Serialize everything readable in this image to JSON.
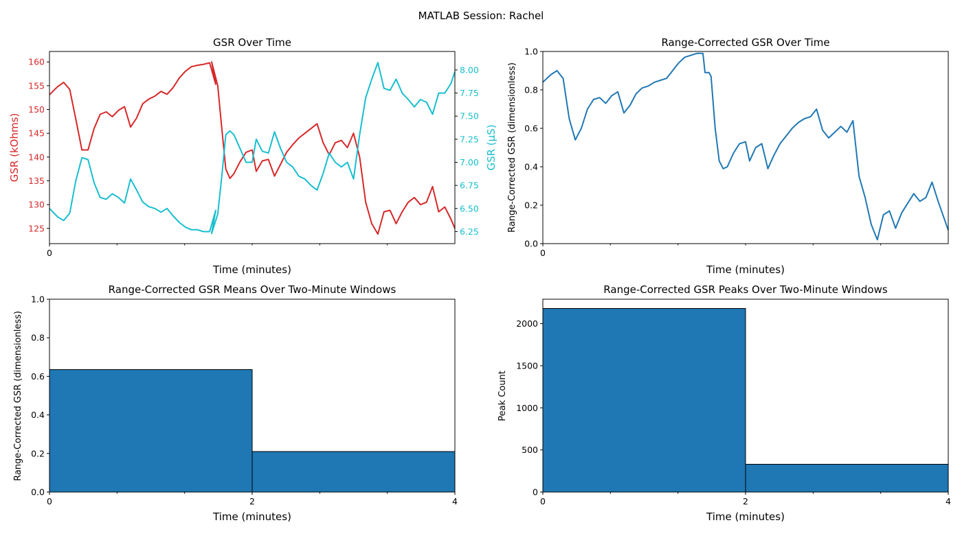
{
  "figure": {
    "suptitle": "MATLAB Session: Rachel"
  },
  "colors": {
    "gsr_kohm": "#d62728",
    "gsr_us": "#17becf",
    "rc_line": "#1f77b4",
    "bar_fill": "#1f77b4",
    "bar_edge": "#000000"
  },
  "chart_data": [
    {
      "type": "line",
      "title": "GSR Over Time",
      "xlabel": "Time (minutes)",
      "ylabel": "GSR (kOhms)",
      "ylabel_right": "GSR (µS)",
      "x_tick_labels": [
        "0"
      ],
      "ylim": [
        121.8,
        162.2
      ],
      "ylim_right": [
        6.12,
        8.2
      ],
      "y_ticks": [
        "125",
        "130",
        "135",
        "140",
        "145",
        "150",
        "155",
        "160"
      ],
      "y_ticks_right": [
        "6.25",
        "6.50",
        "6.75",
        "7.00",
        "7.25",
        "7.50",
        "7.75",
        "8.00"
      ],
      "series": [
        {
          "axis": "left",
          "color": "#d62728",
          "x": [
            0.0,
            0.02,
            0.035,
            0.05,
            0.065,
            0.08,
            0.095,
            0.11,
            0.125,
            0.14,
            0.155,
            0.17,
            0.185,
            0.2,
            0.215,
            0.23,
            0.245,
            0.26,
            0.275,
            0.29,
            0.305,
            0.32,
            0.335,
            0.35,
            0.365,
            0.38,
            0.395,
            0.41,
            0.4,
            0.415,
            0.425,
            0.435,
            0.445,
            0.455,
            0.47,
            0.485,
            0.5,
            0.51,
            0.525,
            0.54,
            0.555,
            0.57,
            0.585,
            0.6,
            0.615,
            0.63,
            0.645,
            0.66,
            0.675,
            0.69,
            0.705,
            0.72,
            0.735,
            0.75,
            0.765,
            0.78,
            0.795,
            0.81,
            0.825,
            0.84,
            0.855,
            0.87,
            0.885,
            0.9,
            0.915,
            0.93,
            0.945,
            0.96,
            0.975,
            0.99,
            1.0
          ],
          "values": [
            153.1,
            154.8,
            155.7,
            154.2,
            148.0,
            141.5,
            141.5,
            146.0,
            149.0,
            149.5,
            148.5,
            149.8,
            150.6,
            146.3,
            148.2,
            151.2,
            152.2,
            152.8,
            153.8,
            153.2,
            154.6,
            156.6,
            158.0,
            159.0,
            159.3,
            159.5,
            159.8,
            155.3,
            160.0,
            155.0,
            146.0,
            137.5,
            135.5,
            136.5,
            139.0,
            141.0,
            141.5,
            137.0,
            139.2,
            139.5,
            136.0,
            138.5,
            141.0,
            142.6,
            144.0,
            145.0,
            146.0,
            147.0,
            143.0,
            140.5,
            143.0,
            143.5,
            142.0,
            145.0,
            140.0,
            130.5,
            126.0,
            123.8,
            128.5,
            128.8,
            126.0,
            128.5,
            130.5,
            131.5,
            130.0,
            130.5,
            133.8,
            128.5,
            129.5,
            127.0,
            125.0
          ]
        },
        {
          "axis": "right",
          "color": "#17becf",
          "x": [
            0.0,
            0.02,
            0.035,
            0.05,
            0.065,
            0.08,
            0.095,
            0.11,
            0.125,
            0.14,
            0.155,
            0.17,
            0.185,
            0.2,
            0.215,
            0.23,
            0.245,
            0.26,
            0.275,
            0.29,
            0.305,
            0.32,
            0.335,
            0.35,
            0.365,
            0.38,
            0.395,
            0.41,
            0.4,
            0.415,
            0.425,
            0.435,
            0.445,
            0.455,
            0.47,
            0.485,
            0.5,
            0.51,
            0.525,
            0.54,
            0.555,
            0.57,
            0.585,
            0.6,
            0.615,
            0.63,
            0.645,
            0.66,
            0.675,
            0.69,
            0.705,
            0.72,
            0.735,
            0.75,
            0.765,
            0.78,
            0.795,
            0.81,
            0.825,
            0.84,
            0.855,
            0.87,
            0.885,
            0.9,
            0.915,
            0.93,
            0.945,
            0.96,
            0.975,
            0.99,
            1.0
          ],
          "values": [
            6.5,
            6.41,
            6.37,
            6.45,
            6.8,
            7.05,
            7.03,
            6.78,
            6.62,
            6.6,
            6.66,
            6.62,
            6.56,
            6.82,
            6.7,
            6.57,
            6.52,
            6.5,
            6.46,
            6.5,
            6.42,
            6.35,
            6.3,
            6.27,
            6.27,
            6.25,
            6.25,
            6.48,
            6.23,
            6.44,
            6.85,
            7.3,
            7.34,
            7.3,
            7.15,
            7.0,
            7.0,
            7.25,
            7.12,
            7.1,
            7.33,
            7.15,
            7.0,
            6.95,
            6.85,
            6.82,
            6.75,
            6.7,
            6.88,
            7.1,
            7.0,
            6.95,
            7.0,
            6.82,
            7.3,
            7.7,
            7.9,
            8.08,
            7.8,
            7.78,
            7.9,
            7.75,
            7.68,
            7.6,
            7.68,
            7.65,
            7.52,
            7.75,
            7.75,
            7.85,
            7.98
          ]
        }
      ]
    },
    {
      "type": "line",
      "title": "Range-Corrected GSR Over Time",
      "xlabel": "Time (minutes)",
      "ylabel": "Range-Corrected GSR (dimensionless)",
      "x_tick_labels": [
        "0"
      ],
      "ylim": [
        0,
        1
      ],
      "y_ticks": [
        "0.0",
        "0.2",
        "0.4",
        "0.6",
        "0.8",
        "1.0"
      ],
      "series": [
        {
          "color": "#1f77b4",
          "x": [
            0.0,
            0.02,
            0.035,
            0.05,
            0.065,
            0.08,
            0.095,
            0.11,
            0.125,
            0.14,
            0.155,
            0.17,
            0.185,
            0.2,
            0.215,
            0.23,
            0.245,
            0.26,
            0.275,
            0.29,
            0.305,
            0.32,
            0.335,
            0.35,
            0.365,
            0.38,
            0.395,
            0.4,
            0.41,
            0.415,
            0.425,
            0.435,
            0.445,
            0.455,
            0.47,
            0.485,
            0.5,
            0.51,
            0.525,
            0.54,
            0.555,
            0.57,
            0.585,
            0.6,
            0.615,
            0.63,
            0.645,
            0.66,
            0.675,
            0.69,
            0.705,
            0.72,
            0.735,
            0.75,
            0.765,
            0.78,
            0.795,
            0.81,
            0.825,
            0.84,
            0.855,
            0.87,
            0.885,
            0.9,
            0.915,
            0.93,
            0.945,
            0.96,
            0.975,
            0.99,
            1.0
          ],
          "values": [
            0.84,
            0.88,
            0.9,
            0.86,
            0.65,
            0.54,
            0.6,
            0.7,
            0.75,
            0.76,
            0.73,
            0.77,
            0.79,
            0.68,
            0.72,
            0.78,
            0.81,
            0.82,
            0.84,
            0.85,
            0.86,
            0.9,
            0.94,
            0.97,
            0.98,
            0.99,
            0.99,
            0.89,
            0.89,
            0.87,
            0.6,
            0.43,
            0.39,
            0.4,
            0.47,
            0.52,
            0.53,
            0.43,
            0.5,
            0.52,
            0.39,
            0.46,
            0.52,
            0.56,
            0.6,
            0.63,
            0.65,
            0.66,
            0.7,
            0.59,
            0.55,
            0.58,
            0.61,
            0.58,
            0.64,
            0.35,
            0.24,
            0.1,
            0.02,
            0.15,
            0.17,
            0.08,
            0.16,
            0.21,
            0.26,
            0.22,
            0.24,
            0.32,
            0.22,
            0.13,
            0.07
          ]
        }
      ]
    },
    {
      "type": "bar",
      "title": "Range-Corrected GSR Means Over Two-Minute Windows",
      "xlabel": "Time (minutes)",
      "ylabel": "Range-Corrected GSR (dimensionless)",
      "bins": [
        [
          0,
          2
        ],
        [
          2,
          4
        ]
      ],
      "values": [
        0.635,
        0.21
      ],
      "xlim": [
        0,
        4
      ],
      "ylim": [
        0,
        1
      ],
      "x_ticks": [
        "0",
        "2",
        "4"
      ],
      "y_ticks": [
        "0.0",
        "0.2",
        "0.4",
        "0.6",
        "0.8",
        "1.0"
      ]
    },
    {
      "type": "bar",
      "title": "Range-Corrected GSR Peaks Over Two-Minute Windows",
      "xlabel": "Time (minutes)",
      "ylabel": "Peak Count",
      "bins": [
        [
          0,
          2
        ],
        [
          2,
          4
        ]
      ],
      "values": [
        2180,
        330
      ],
      "xlim": [
        0,
        4
      ],
      "ylim": [
        0,
        2290
      ],
      "x_ticks": [
        "0",
        "2",
        "4"
      ],
      "y_ticks": [
        "0",
        "500",
        "1000",
        "1500",
        "2000"
      ]
    }
  ]
}
